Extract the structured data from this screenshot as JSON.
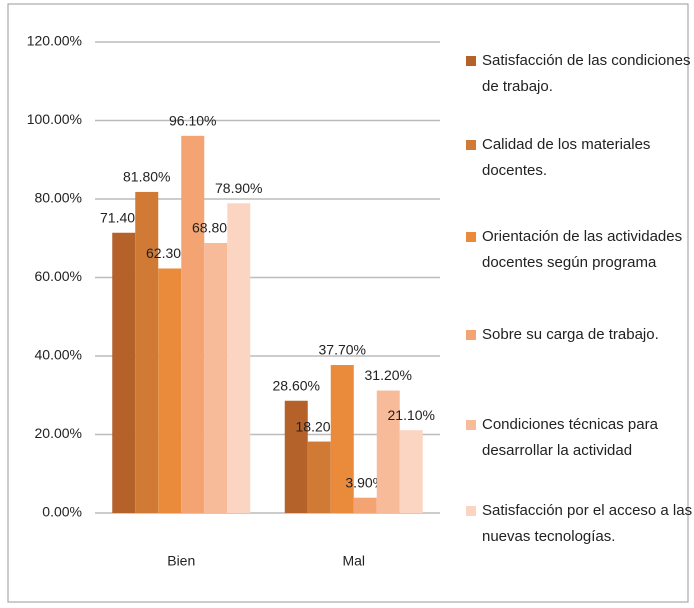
{
  "chart_data": {
    "type": "bar",
    "categories": [
      "Bien",
      "Mal"
    ],
    "series": [
      {
        "name": "Satisfacción de las condiciones de trabajo.",
        "color": "#b5612a",
        "values": [
          71.4,
          28.6
        ],
        "value_labels": [
          "71.40%",
          "28.60%"
        ]
      },
      {
        "name": "Calidad de los materiales docentes.",
        "color": "#d07a35",
        "values": [
          81.8,
          18.2
        ],
        "value_labels": [
          "81.80%",
          "18.20%"
        ]
      },
      {
        "name": "Orientación de las actividades docentes según programa",
        "color": "#e98b3a",
        "values": [
          62.3,
          37.7
        ],
        "value_labels": [
          "62.30%",
          "37.70%"
        ]
      },
      {
        "name": "Sobre su carga de trabajo.",
        "color": "#f4a472",
        "values": [
          96.1,
          3.9
        ],
        "value_labels": [
          "96.10%",
          "3.90%"
        ]
      },
      {
        "name": "Condiciones técnicas para desarrollar la actividad",
        "color": "#f7bb9a",
        "values": [
          68.8,
          31.2
        ],
        "value_labels": [
          "68.80%",
          "31.20%"
        ]
      },
      {
        "name": "Satisfacción por el acceso a las nuevas tecnologías.",
        "color": "#fbd5c2",
        "values": [
          78.9,
          21.1
        ],
        "value_labels": [
          "78.90%",
          "21.10%"
        ]
      }
    ],
    "ylim": [
      0,
      120
    ],
    "yticks": [
      {
        "value": 0,
        "label": "0.00%"
      },
      {
        "value": 20,
        "label": "20.00%"
      },
      {
        "value": 40,
        "label": "40.00%"
      },
      {
        "value": 60,
        "label": "60.00%"
      },
      {
        "value": 80,
        "label": "80.00%"
      },
      {
        "value": 100,
        "label": "100.00%"
      },
      {
        "value": 120,
        "label": "120.00%"
      }
    ],
    "grid": true,
    "legend": "right"
  }
}
